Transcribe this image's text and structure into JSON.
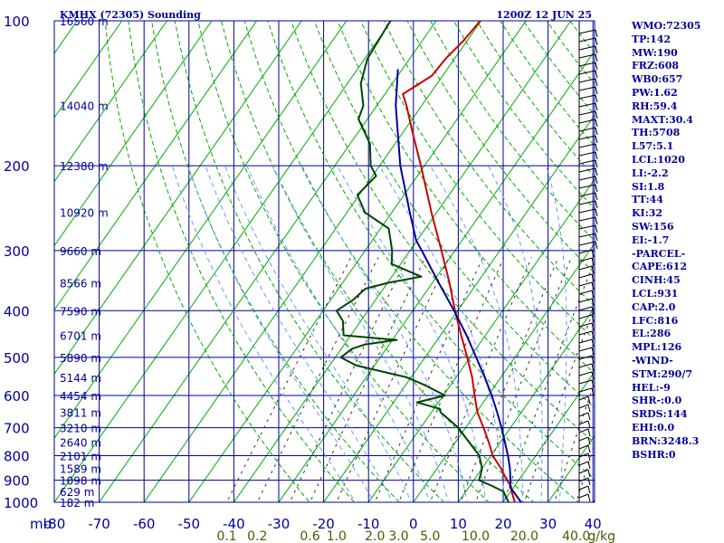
{
  "header": {
    "station": "KMHX (72305) Sounding",
    "time": "1200Z 12 JUN 25"
  },
  "indices": [
    "WMO:72305",
    "TP:142",
    "MW:190",
    "FRZ:608",
    "WB0:657",
    "PW:1.62",
    "RH:59.4",
    "MAXT:30.4",
    "TH:5708",
    "L57:5.1",
    "LCL:1020",
    "LI:-2.2",
    "SI:1.8",
    "TT:44",
    "KI:32",
    "SW:156",
    "EI:-1.7",
    "-PARCEL-",
    "CAPE:612",
    "CINH:45",
    "LCL:931",
    "CAP:2.0",
    "LFC:816",
    "EL:286",
    "MPL:126",
    "-WIND-",
    "STM:290/7",
    "HEL:-9",
    "SHR-:0.0",
    "SRDS:144",
    "EHI:0.0",
    "BRN:3248.3",
    "BSHR:0"
  ],
  "chart_data": {
    "type": "line",
    "subtype": "skew-t log-p sounding",
    "title": "KMHX (72305) Sounding",
    "subtitle": "1200Z 12 JUN 25",
    "y_axis": {
      "label": "mb",
      "scale": "log",
      "ticks": [
        100,
        200,
        300,
        400,
        500,
        600,
        700,
        800,
        900,
        1000
      ]
    },
    "x_axis": {
      "ticks": [
        -80,
        -70,
        -60,
        -50,
        -40,
        -30,
        -20,
        -10,
        0,
        10,
        20,
        30,
        40
      ]
    },
    "mixing_ratio_axis": {
      "unit": "g/kg",
      "ticks": [
        "0.1",
        "0.2",
        "0.6",
        "1.0",
        "2.0",
        "3.0",
        "5.0",
        "10.0",
        "20.0",
        "40.0"
      ]
    },
    "height_labels": [
      {
        "p": 100,
        "label": "16560 m"
      },
      {
        "p": 150,
        "label": "14040 m"
      },
      {
        "p": 200,
        "label": "12380 m"
      },
      {
        "p": 250,
        "label": "10920 m"
      },
      {
        "p": 300,
        "label": "9660 m"
      },
      {
        "p": 350,
        "label": "8566 m"
      },
      {
        "p": 400,
        "label": "7590 m"
      },
      {
        "p": 450,
        "label": "6701 m"
      },
      {
        "p": 500,
        "label": "5890 m"
      },
      {
        "p": 550,
        "label": "5144 m"
      },
      {
        "p": 600,
        "label": "4454 m"
      },
      {
        "p": 650,
        "label": "3811 m"
      },
      {
        "p": 700,
        "label": "3210 m"
      },
      {
        "p": 750,
        "label": "2640 m"
      },
      {
        "p": 800,
        "label": "2101 m"
      },
      {
        "p": 850,
        "label": "1589 m"
      },
      {
        "p": 900,
        "label": "1098 m"
      },
      {
        "p": 950,
        "label": "629 m"
      },
      {
        "p": 1000,
        "label": "182 m"
      }
    ],
    "grid": true,
    "series": [
      {
        "key": "temperature",
        "color": "#cc0000",
        "points": [
          [
            1014,
            25.0
          ],
          [
            1000,
            22.6
          ],
          [
            950,
            20.2
          ],
          [
            925,
            19.2
          ],
          [
            900,
            17.4
          ],
          [
            850,
            14.2
          ],
          [
            800,
            10.4
          ],
          [
            750,
            7.4
          ],
          [
            700,
            4.0
          ],
          [
            650,
            0.2
          ],
          [
            600,
            -3.0
          ],
          [
            550,
            -6.4
          ],
          [
            500,
            -10.6
          ],
          [
            450,
            -15.4
          ],
          [
            400,
            -20.6
          ],
          [
            350,
            -26.2
          ],
          [
            300,
            -33.0
          ],
          [
            250,
            -41.2
          ],
          [
            200,
            -50.8
          ],
          [
            170,
            -58.0
          ],
          [
            150,
            -63.4
          ],
          [
            142,
            -66.0
          ],
          [
            130,
            -62.4
          ],
          [
            120,
            -62.0
          ],
          [
            110,
            -60.8
          ],
          [
            100,
            -60.2
          ]
        ]
      },
      {
        "key": "dewpoint",
        "color": "#004400",
        "points": [
          [
            1014,
            22.0
          ],
          [
            1000,
            21.2
          ],
          [
            950,
            18.4
          ],
          [
            925,
            15.0
          ],
          [
            900,
            11.2
          ],
          [
            850,
            10.0
          ],
          [
            800,
            7.4
          ],
          [
            750,
            3.0
          ],
          [
            700,
            -1.6
          ],
          [
            650,
            -8.0
          ],
          [
            640,
            -8.6
          ],
          [
            620,
            -14.8
          ],
          [
            600,
            -9.6
          ],
          [
            570,
            -16.0
          ],
          [
            550,
            -21.0
          ],
          [
            520,
            -34.0
          ],
          [
            500,
            -38.8
          ],
          [
            480,
            -37.6
          ],
          [
            470,
            -35.4
          ],
          [
            460,
            -29.0
          ],
          [
            450,
            -41.6
          ],
          [
            420,
            -44.0
          ],
          [
            400,
            -47.0
          ],
          [
            380,
            -45.0
          ],
          [
            360,
            -44.0
          ],
          [
            350,
            -39.8
          ],
          [
            340,
            -33.4
          ],
          [
            320,
            -42.0
          ],
          [
            300,
            -44.0
          ],
          [
            270,
            -48.2
          ],
          [
            250,
            -56.0
          ],
          [
            230,
            -60.4
          ],
          [
            210,
            -59.2
          ],
          [
            200,
            -62.0
          ],
          [
            180,
            -65.6
          ],
          [
            160,
            -72.0
          ],
          [
            150,
            -73.0
          ],
          [
            135,
            -77.0
          ],
          [
            120,
            -79.4
          ],
          [
            100,
            -80.2
          ]
        ]
      },
      {
        "key": "parcel",
        "color": "#000099",
        "points": [
          [
            1014,
            26.8
          ],
          [
            1000,
            24.0
          ],
          [
            950,
            20.6
          ],
          [
            931,
            19.2
          ],
          [
            900,
            18.2
          ],
          [
            850,
            16.2
          ],
          [
            800,
            13.8
          ],
          [
            750,
            11.0
          ],
          [
            700,
            8.0
          ],
          [
            650,
            4.6
          ],
          [
            600,
            0.8
          ],
          [
            550,
            -3.6
          ],
          [
            500,
            -8.6
          ],
          [
            450,
            -14.2
          ],
          [
            400,
            -20.8
          ],
          [
            350,
            -28.6
          ],
          [
            300,
            -37.4
          ],
          [
            286,
            -40.2
          ],
          [
            250,
            -46.0
          ],
          [
            200,
            -55.4
          ],
          [
            150,
            -65.8
          ],
          [
            126,
            -71.0
          ]
        ]
      }
    ]
  }
}
